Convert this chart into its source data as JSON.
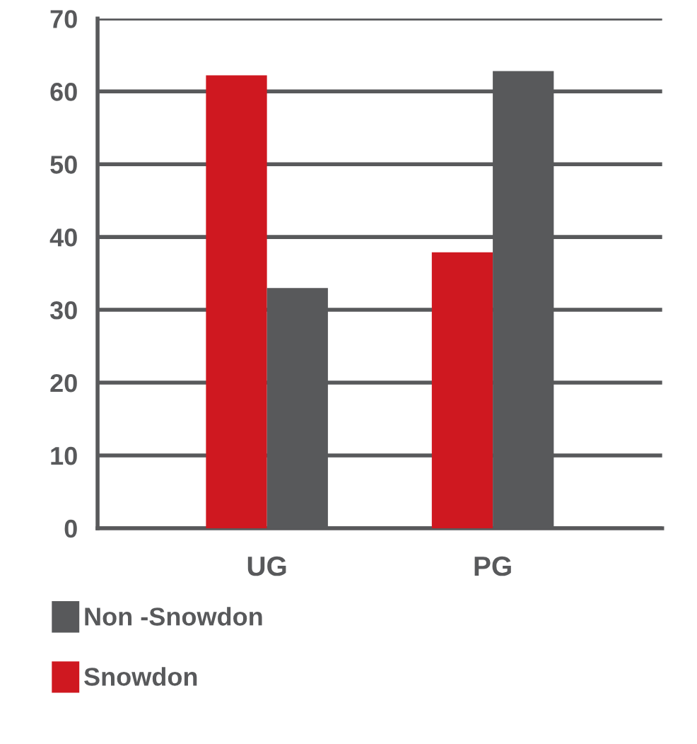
{
  "chart_data": {
    "type": "bar",
    "categories": [
      "UG",
      "PG"
    ],
    "series": [
      {
        "name": "Snowdon",
        "color": "#cf1820",
        "values": [
          62.2,
          37.9
        ]
      },
      {
        "name": "Non -Snowdon",
        "color": "#58595b",
        "values": [
          33.0,
          62.8
        ]
      }
    ],
    "ylim": [
      0,
      70
    ],
    "yticks": [
      0,
      10,
      20,
      30,
      40,
      50,
      60,
      70
    ],
    "grid": "y",
    "legend": "bottom"
  }
}
